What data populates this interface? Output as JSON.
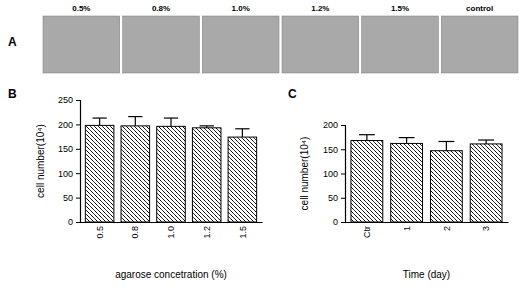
{
  "panel_a": {
    "label": "A",
    "image_labels": [
      "0.5%",
      "0.8%",
      "1.0%",
      "1.2%",
      "1.5%",
      "control"
    ]
  },
  "chart_data": [
    {
      "type": "bar",
      "annotations": [
        "B"
      ],
      "x_label": "agarose concetration (%)",
      "y_label": "cell number(10⁴)",
      "categories": [
        "0.5",
        "0.8",
        "1.0",
        "1.2",
        "1.5"
      ],
      "values": [
        198,
        197,
        196,
        193,
        174
      ],
      "errors": [
        15,
        19,
        17,
        4,
        17
      ],
      "color": "#000000",
      "ylim": [
        0,
        250
      ],
      "yticks": [
        0,
        50,
        100,
        150,
        200,
        250
      ]
    },
    {
      "type": "bar",
      "annotations": [
        "C"
      ],
      "x_label": "Time (day)",
      "y_label": "cell number(10⁴)",
      "categories": [
        "Ctr",
        "1",
        "2",
        "3"
      ],
      "values": [
        168,
        162,
        147,
        161
      ],
      "errors": [
        12,
        12,
        19,
        8
      ],
      "color": "#000000",
      "ylim": [
        0,
        200
      ],
      "yticks": [
        0,
        50,
        100,
        150,
        200
      ]
    }
  ]
}
